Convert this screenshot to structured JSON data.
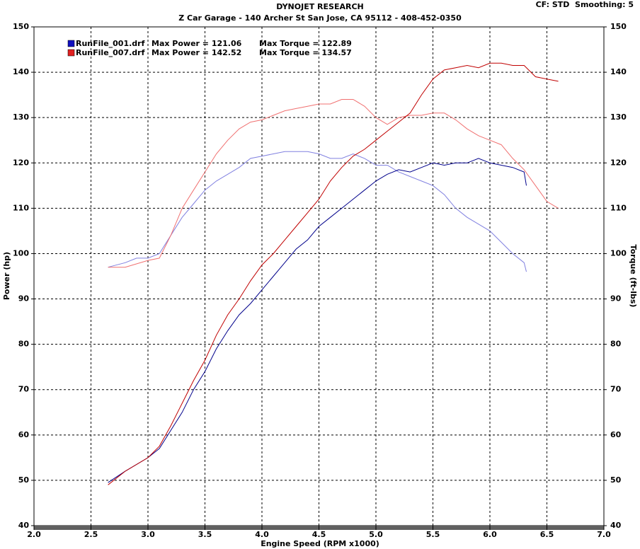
{
  "chart_data": {
    "type": "line",
    "title": "DYNOJET RESEARCH",
    "subtitle": "Z Car Garage - 140 Archer St San Jose, CA 95112 - 408-452-0350",
    "settings_label": "CF: STD  Smoothing: 5",
    "xlabel": "Engine Speed (RPM x1000)",
    "ylabel": "Power (hp)",
    "y2label": "Torque (ft-lbs)",
    "xlim": [
      2,
      7
    ],
    "xticks": [
      {
        "value": 2,
        "label": "2.0"
      },
      {
        "value": 2.5,
        "label": "2.5"
      },
      {
        "value": 3,
        "label": "3.0"
      },
      {
        "value": 3.5,
        "label": "3.5"
      },
      {
        "value": 4,
        "label": "4.0"
      },
      {
        "value": 4.5,
        "label": "4.5"
      },
      {
        "value": 5,
        "label": "5.0"
      },
      {
        "value": 5.5,
        "label": "5.5"
      },
      {
        "value": 6,
        "label": "6.0"
      },
      {
        "value": 6.5,
        "label": "6.5"
      },
      {
        "value": 7,
        "label": "7.0"
      }
    ],
    "ylim": [
      40,
      150
    ],
    "yticks": [
      40,
      50,
      60,
      70,
      80,
      90,
      100,
      110,
      120,
      130,
      140,
      150
    ],
    "y2lim": [
      40,
      150
    ],
    "y2ticks": [
      40,
      50,
      60,
      70,
      80,
      90,
      100,
      110,
      120,
      130,
      140,
      150
    ],
    "grid": true,
    "runs": [
      {
        "name": "RunFile_001.drf",
        "max_power": "Max Power = 121.06",
        "max_torque": "Max Torque = 122.89",
        "color": "#1010c0",
        "power": {
          "color": "#00008b",
          "x": [
            2.65,
            2.8,
            3.0,
            3.1,
            3.2,
            3.3,
            3.4,
            3.5,
            3.6,
            3.7,
            3.8,
            3.9,
            4.0,
            4.1,
            4.2,
            4.3,
            4.4,
            4.5,
            4.6,
            4.7,
            4.8,
            4.9,
            5.0,
            5.1,
            5.2,
            5.3,
            5.4,
            5.5,
            5.6,
            5.7,
            5.8,
            5.9,
            6.0,
            6.1,
            6.2,
            6.3,
            6.32
          ],
          "values": [
            49.5,
            52,
            55,
            57,
            61,
            65,
            70,
            74,
            79,
            83,
            86.5,
            89,
            92,
            95,
            98,
            101,
            103,
            106,
            108,
            110,
            112,
            114,
            116,
            117.5,
            118.5,
            118,
            119,
            120,
            119.5,
            120,
            120,
            121,
            120,
            119.5,
            119,
            118,
            115
          ]
        },
        "torque": {
          "color": "#8080e0",
          "x": [
            2.65,
            2.8,
            2.9,
            3.0,
            3.1,
            3.2,
            3.3,
            3.4,
            3.5,
            3.6,
            3.7,
            3.8,
            3.9,
            4.0,
            4.1,
            4.2,
            4.3,
            4.4,
            4.5,
            4.6,
            4.7,
            4.8,
            4.9,
            5.0,
            5.1,
            5.2,
            5.3,
            5.4,
            5.5,
            5.6,
            5.7,
            5.8,
            5.9,
            6.0,
            6.1,
            6.2,
            6.3,
            6.32
          ],
          "values": [
            97,
            98,
            99,
            99,
            100,
            104,
            108,
            111,
            114,
            116,
            117.5,
            119,
            121,
            121.5,
            122,
            122.5,
            122.5,
            122.5,
            122,
            121,
            121,
            122,
            121,
            119.5,
            119.5,
            118,
            117,
            116,
            115,
            113,
            110,
            108,
            106.5,
            105,
            102.5,
            100,
            98,
            96
          ]
        }
      },
      {
        "name": "RunFile_007.drf",
        "max_power": "Max Power = 142.52",
        "max_torque": "Max Torque = 134.57",
        "color": "#e02020",
        "power": {
          "color": "#c00000",
          "x": [
            2.65,
            2.8,
            3.0,
            3.1,
            3.2,
            3.3,
            3.4,
            3.5,
            3.6,
            3.7,
            3.8,
            3.9,
            4.0,
            4.1,
            4.2,
            4.3,
            4.4,
            4.5,
            4.6,
            4.7,
            4.8,
            4.9,
            5.0,
            5.1,
            5.2,
            5.3,
            5.4,
            5.5,
            5.6,
            5.7,
            5.8,
            5.9,
            6.0,
            6.1,
            6.2,
            6.3,
            6.4,
            6.5,
            6.6
          ],
          "values": [
            49,
            52,
            55,
            57.5,
            62,
            67,
            72,
            76.5,
            82,
            86.5,
            90,
            94,
            97.5,
            100,
            103,
            106,
            109,
            112,
            116,
            119,
            121.5,
            123,
            125,
            127,
            129,
            131,
            135,
            138.5,
            140.5,
            141,
            141.5,
            141,
            142,
            142,
            141.5,
            141.5,
            139,
            138.5,
            138
          ]
        },
        "torque": {
          "color": "#f07070",
          "x": [
            2.65,
            2.8,
            3.0,
            3.1,
            3.2,
            3.3,
            3.4,
            3.5,
            3.6,
            3.7,
            3.8,
            3.9,
            4.0,
            4.1,
            4.2,
            4.3,
            4.4,
            4.5,
            4.6,
            4.7,
            4.8,
            4.9,
            5.0,
            5.1,
            5.2,
            5.3,
            5.4,
            5.5,
            5.6,
            5.7,
            5.8,
            5.9,
            6.0,
            6.1,
            6.2,
            6.3,
            6.4,
            6.5,
            6.6
          ],
          "values": [
            97,
            97,
            98.5,
            99,
            104,
            110,
            114,
            118,
            122,
            125,
            127.5,
            129,
            129.5,
            130.5,
            131.5,
            132,
            132.5,
            133,
            133,
            134,
            134,
            132.5,
            130,
            128.5,
            130,
            130.5,
            130.5,
            131,
            131,
            129.5,
            127.5,
            126,
            125,
            124,
            121,
            118.5,
            115,
            111.5,
            110
          ]
        }
      }
    ]
  }
}
